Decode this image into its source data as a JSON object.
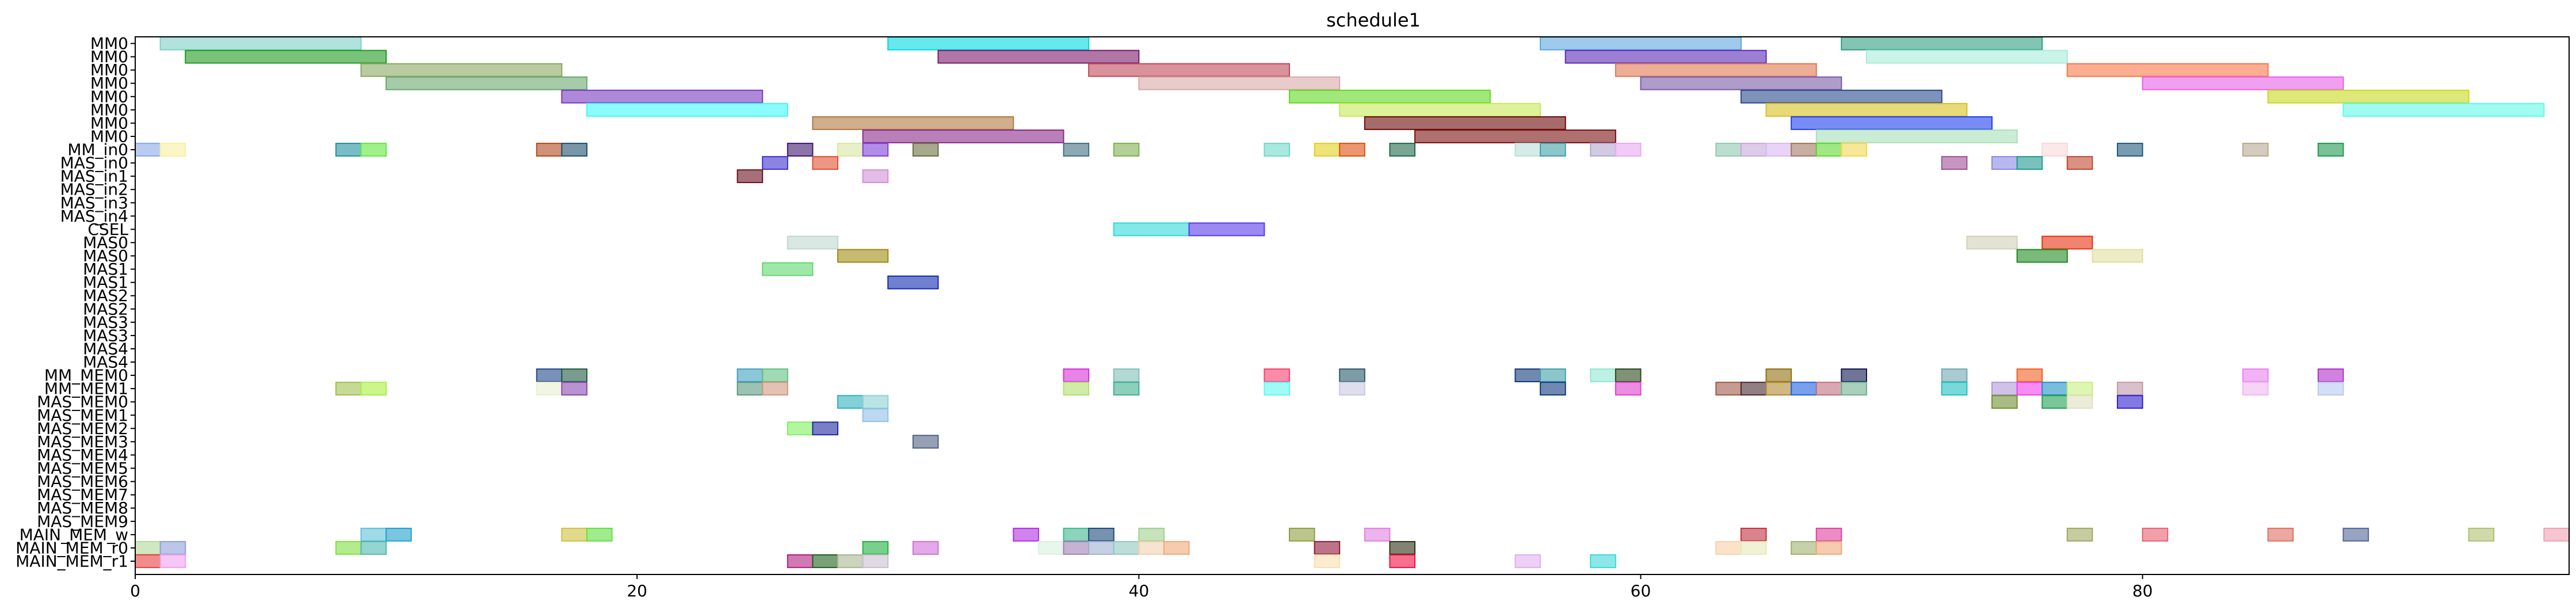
{
  "chart_data": {
    "type": "gantt",
    "title": "schedule1",
    "xlabel": "",
    "ylabel": "",
    "xlim": [
      0,
      97
    ],
    "xticks": [
      0,
      20,
      40,
      60,
      80
    ],
    "grid": false,
    "rows": [
      "MM0",
      "MM0",
      "MM0",
      "MM0",
      "MM0",
      "MM0",
      "MM0",
      "MM0",
      "MM_in0",
      "MAS_in0",
      "MAS_in1",
      "MAS_in2",
      "MAS_in3",
      "MAS_in4",
      "CSEL",
      "MAS0",
      "MAS0",
      "MAS1",
      "MAS1",
      "MAS2",
      "MAS2",
      "MAS3",
      "MAS3",
      "MAS4",
      "MAS4",
      "MM_MEM0",
      "MM_MEM1",
      "MAS_MEM0",
      "MAS_MEM1",
      "MAS_MEM2",
      "MAS_MEM3",
      "MAS_MEM4",
      "MAS_MEM5",
      "MAS_MEM6",
      "MAS_MEM7",
      "MAS_MEM8",
      "MAS_MEM9",
      "MAIN_MEM_w",
      "MAIN_MEM_r0",
      "MAIN_MEM_r1"
    ],
    "tasks": [
      {
        "row": 0,
        "start": 1,
        "end": 9,
        "color": "#7ecfc8"
      },
      {
        "row": 0,
        "start": 30,
        "end": 38,
        "color": "#00d8e0"
      },
      {
        "row": 0,
        "start": 56,
        "end": 64,
        "color": "#5ea6e0"
      },
      {
        "row": 0,
        "start": 68,
        "end": 76,
        "color": "#2e9e80"
      },
      {
        "row": 1,
        "start": 2,
        "end": 10,
        "color": "#1f9a1f"
      },
      {
        "row": 1,
        "start": 32,
        "end": 40,
        "color": "#7a1a6a"
      },
      {
        "row": 1,
        "start": 57,
        "end": 65,
        "color": "#5a2ab8"
      },
      {
        "row": 1,
        "start": 69,
        "end": 77,
        "color": "#a8ecd8"
      },
      {
        "row": 2,
        "start": 9,
        "end": 17,
        "color": "#8aa860"
      },
      {
        "row": 2,
        "start": 38,
        "end": 46,
        "color": "#c04858"
      },
      {
        "row": 2,
        "start": 59,
        "end": 67,
        "color": "#e07850"
      },
      {
        "row": 2,
        "start": 77,
        "end": 85,
        "color": "#f87848"
      },
      {
        "row": 3,
        "start": 10,
        "end": 18,
        "color": "#6aa870"
      },
      {
        "row": 3,
        "start": 40,
        "end": 48,
        "color": "#d8a8a8"
      },
      {
        "row": 3,
        "start": 60,
        "end": 68,
        "color": "#7a5aa8"
      },
      {
        "row": 3,
        "start": 80,
        "end": 88,
        "color": "#e860e8"
      },
      {
        "row": 4,
        "start": 17,
        "end": 25,
        "color": "#7a3ac0"
      },
      {
        "row": 4,
        "start": 46,
        "end": 54,
        "color": "#60d820"
      },
      {
        "row": 4,
        "start": 64,
        "end": 72,
        "color": "#2a4a8a"
      },
      {
        "row": 4,
        "start": 85,
        "end": 93,
        "color": "#c8d820"
      },
      {
        "row": 5,
        "start": 18,
        "end": 26,
        "color": "#40f8f8"
      },
      {
        "row": 5,
        "start": 48,
        "end": 56,
        "color": "#c8e858"
      },
      {
        "row": 5,
        "start": 65,
        "end": 73,
        "color": "#d8c020"
      },
      {
        "row": 5,
        "start": 88,
        "end": 96,
        "color": "#60f8e8"
      },
      {
        "row": 6,
        "start": 27,
        "end": 35,
        "color": "#b07840"
      },
      {
        "row": 6,
        "start": 49,
        "end": 57,
        "color": "#6a0a0a"
      },
      {
        "row": 6,
        "start": 66,
        "end": 74,
        "color": "#2040f0"
      },
      {
        "row": 7,
        "start": 29,
        "end": 37,
        "color": "#8a2a8a"
      },
      {
        "row": 7,
        "start": 51,
        "end": 59,
        "color": "#7a1010"
      },
      {
        "row": 7,
        "start": 67,
        "end": 75,
        "color": "#a8e0b8"
      },
      {
        "row": 8,
        "start": 0,
        "end": 1,
        "color": "#88a8e8"
      },
      {
        "row": 8,
        "start": 1,
        "end": 2,
        "color": "#f8f0a0"
      },
      {
        "row": 8,
        "start": 8,
        "end": 9,
        "color": "#2090a0"
      },
      {
        "row": 8,
        "start": 9,
        "end": 10,
        "color": "#60e840"
      },
      {
        "row": 8,
        "start": 16,
        "end": 17,
        "color": "#b04820"
      },
      {
        "row": 8,
        "start": 17,
        "end": 18,
        "color": "#205070"
      },
      {
        "row": 8,
        "start": 26,
        "end": 27,
        "color": "#401870"
      },
      {
        "row": 8,
        "start": 28,
        "end": 29,
        "color": "#d8e8a0"
      },
      {
        "row": 8,
        "start": 29,
        "end": 30,
        "color": "#8040d8"
      },
      {
        "row": 8,
        "start": 31,
        "end": 32,
        "color": "#6a7040"
      },
      {
        "row": 8,
        "start": 37,
        "end": 38,
        "color": "#407080"
      },
      {
        "row": 8,
        "start": 39,
        "end": 40,
        "color": "#80b050"
      },
      {
        "row": 8,
        "start": 45,
        "end": 46,
        "color": "#70d8c8"
      },
      {
        "row": 8,
        "start": 47,
        "end": 48,
        "color": "#e0d020"
      },
      {
        "row": 8,
        "start": 48,
        "end": 49,
        "color": "#e05010"
      },
      {
        "row": 8,
        "start": 50,
        "end": 51,
        "color": "#206a4a"
      },
      {
        "row": 8,
        "start": 55,
        "end": 56,
        "color": "#b8e0d8"
      },
      {
        "row": 8,
        "start": 56,
        "end": 57,
        "color": "#40a0a8"
      },
      {
        "row": 8,
        "start": 58,
        "end": 59,
        "color": "#b0a8d0"
      },
      {
        "row": 8,
        "start": 59,
        "end": 60,
        "color": "#e8a8f0"
      },
      {
        "row": 8,
        "start": 63,
        "end": 64,
        "color": "#90c8b0"
      },
      {
        "row": 8,
        "start": 64,
        "end": 65,
        "color": "#c8a8d8"
      },
      {
        "row": 8,
        "start": 65,
        "end": 66,
        "color": "#d8b8f0"
      },
      {
        "row": 8,
        "start": 66,
        "end": 67,
        "color": "#a07860"
      },
      {
        "row": 8,
        "start": 67,
        "end": 68,
        "color": "#60d830"
      },
      {
        "row": 8,
        "start": 68,
        "end": 69,
        "color": "#f0d850"
      },
      {
        "row": 8,
        "start": 76,
        "end": 77,
        "color": "#f8d8d8"
      },
      {
        "row": 8,
        "start": 79,
        "end": 80,
        "color": "#205a7a"
      },
      {
        "row": 8,
        "start": 84,
        "end": 85,
        "color": "#b8a890"
      },
      {
        "row": 8,
        "start": 87,
        "end": 88,
        "color": "#209a50"
      },
      {
        "row": 9,
        "start": 25,
        "end": 26,
        "color": "#4030d0"
      },
      {
        "row": 9,
        "start": 27,
        "end": 28,
        "color": "#e05030"
      },
      {
        "row": 9,
        "start": 72,
        "end": 73,
        "color": "#a05098"
      },
      {
        "row": 9,
        "start": 74,
        "end": 75,
        "color": "#8888e8"
      },
      {
        "row": 9,
        "start": 75,
        "end": 76,
        "color": "#209a90"
      },
      {
        "row": 9,
        "start": 77,
        "end": 78,
        "color": "#c04830"
      },
      {
        "row": 10,
        "start": 24,
        "end": 25,
        "color": "#6a1020"
      },
      {
        "row": 10,
        "start": 29,
        "end": 30,
        "color": "#d090d8"
      },
      {
        "row": 14,
        "start": 39,
        "end": 42,
        "color": "#30d8d8"
      },
      {
        "row": 14,
        "start": 42,
        "end": 45,
        "color": "#5a3ae8"
      },
      {
        "row": 15,
        "start": 26,
        "end": 28,
        "color": "#c0d8d0"
      },
      {
        "row": 15,
        "start": 73,
        "end": 75,
        "color": "#d0d0b8"
      },
      {
        "row": 15,
        "start": 76,
        "end": 78,
        "color": "#e83010"
      },
      {
        "row": 16,
        "start": 28,
        "end": 30,
        "color": "#a08a10"
      },
      {
        "row": 16,
        "start": 75,
        "end": 77,
        "color": "#208a20"
      },
      {
        "row": 16,
        "start": 78,
        "end": 80,
        "color": "#e0e0a0"
      },
      {
        "row": 17,
        "start": 25,
        "end": 27,
        "color": "#60d870"
      },
      {
        "row": 18,
        "start": 30,
        "end": 32,
        "color": "#102ab0"
      },
      {
        "row": 25,
        "start": 16,
        "end": 17,
        "color": "#204a8a"
      },
      {
        "row": 25,
        "start": 17,
        "end": 18,
        "color": "#205a40"
      },
      {
        "row": 25,
        "start": 24,
        "end": 25,
        "color": "#40a0c0"
      },
      {
        "row": 25,
        "start": 25,
        "end": 26,
        "color": "#60c080"
      },
      {
        "row": 25,
        "start": 37,
        "end": 38,
        "color": "#d830d8"
      },
      {
        "row": 25,
        "start": 39,
        "end": 40,
        "color": "#80c0b8"
      },
      {
        "row": 25,
        "start": 45,
        "end": 46,
        "color": "#f84070"
      },
      {
        "row": 25,
        "start": 48,
        "end": 49,
        "color": "#2a5a6a"
      },
      {
        "row": 25,
        "start": 55,
        "end": 56,
        "color": "#103a7a"
      },
      {
        "row": 25,
        "start": 56,
        "end": 57,
        "color": "#40a0a8"
      },
      {
        "row": 25,
        "start": 58,
        "end": 59,
        "color": "#90e8d0"
      },
      {
        "row": 25,
        "start": 59,
        "end": 60,
        "color": "#2a4a1a"
      },
      {
        "row": 25,
        "start": 65,
        "end": 66,
        "color": "#907010"
      },
      {
        "row": 25,
        "start": 68,
        "end": 69,
        "color": "#101850"
      },
      {
        "row": 25,
        "start": 72,
        "end": 73,
        "color": "#70a8b0"
      },
      {
        "row": 25,
        "start": 75,
        "end": 76,
        "color": "#f06020"
      },
      {
        "row": 25,
        "start": 84,
        "end": 85,
        "color": "#e880f0"
      },
      {
        "row": 25,
        "start": 87,
        "end": 88,
        "color": "#b030c8"
      },
      {
        "row": 26,
        "start": 8,
        "end": 9,
        "color": "#a0c050"
      },
      {
        "row": 26,
        "start": 9,
        "end": 10,
        "color": "#a8f040"
      },
      {
        "row": 26,
        "start": 16,
        "end": 17,
        "color": "#e8f0d0"
      },
      {
        "row": 26,
        "start": 17,
        "end": 18,
        "color": "#8a4ab0"
      },
      {
        "row": 26,
        "start": 24,
        "end": 25,
        "color": "#5a9a80"
      },
      {
        "row": 26,
        "start": 25,
        "end": 26,
        "color": "#d09880"
      },
      {
        "row": 26,
        "start": 37,
        "end": 38,
        "color": "#b0e070"
      },
      {
        "row": 26,
        "start": 39,
        "end": 40,
        "color": "#40b090"
      },
      {
        "row": 26,
        "start": 45,
        "end": 46,
        "color": "#60f8f0"
      },
      {
        "row": 26,
        "start": 48,
        "end": 49,
        "color": "#c8c8e0"
      },
      {
        "row": 26,
        "start": 56,
        "end": 57,
        "color": "#103a80"
      },
      {
        "row": 26,
        "start": 59,
        "end": 60,
        "color": "#e040d0"
      },
      {
        "row": 26,
        "start": 63,
        "end": 64,
        "color": "#a05848"
      },
      {
        "row": 26,
        "start": 64,
        "end": 65,
        "color": "#4a2a30"
      },
      {
        "row": 26,
        "start": 65,
        "end": 66,
        "color": "#b08830"
      },
      {
        "row": 26,
        "start": 66,
        "end": 67,
        "color": "#2060e0"
      },
      {
        "row": 26,
        "start": 67,
        "end": 68,
        "color": "#c07080"
      },
      {
        "row": 26,
        "start": 68,
        "end": 69,
        "color": "#70b090"
      },
      {
        "row": 26,
        "start": 72,
        "end": 73,
        "color": "#20c0c0"
      },
      {
        "row": 26,
        "start": 74,
        "end": 75,
        "color": "#b098d8"
      },
      {
        "row": 26,
        "start": 75,
        "end": 76,
        "color": "#f040e8"
      },
      {
        "row": 26,
        "start": 76,
        "end": 77,
        "color": "#2090c8"
      },
      {
        "row": 26,
        "start": 77,
        "end": 78,
        "color": "#c8f080"
      },
      {
        "row": 26,
        "start": 79,
        "end": 80,
        "color": "#c098a8"
      },
      {
        "row": 26,
        "start": 84,
        "end": 85,
        "color": "#f0b8f0"
      },
      {
        "row": 26,
        "start": 87,
        "end": 88,
        "color": "#b8c8f0"
      },
      {
        "row": 27,
        "start": 28,
        "end": 29,
        "color": "#30b0c0"
      },
      {
        "row": 27,
        "start": 29,
        "end": 30,
        "color": "#90d0d0"
      },
      {
        "row": 27,
        "start": 74,
        "end": 75,
        "color": "#709030"
      },
      {
        "row": 27,
        "start": 76,
        "end": 77,
        "color": "#20a050"
      },
      {
        "row": 27,
        "start": 77,
        "end": 78,
        "color": "#e0e0c0"
      },
      {
        "row": 27,
        "start": 79,
        "end": 80,
        "color": "#3020d0"
      },
      {
        "row": 28,
        "start": 29,
        "end": 30,
        "color": "#90c0e8"
      },
      {
        "row": 29,
        "start": 26,
        "end": 27,
        "color": "#80f060"
      },
      {
        "row": 29,
        "start": 27,
        "end": 28,
        "color": "#202aa0"
      },
      {
        "row": 30,
        "start": 31,
        "end": 32,
        "color": "#506080"
      },
      {
        "row": 37,
        "start": 9,
        "end": 10,
        "color": "#60c0d8"
      },
      {
        "row": 37,
        "start": 10,
        "end": 11,
        "color": "#20a0d0"
      },
      {
        "row": 37,
        "start": 17,
        "end": 18,
        "color": "#d0c040"
      },
      {
        "row": 37,
        "start": 18,
        "end": 19,
        "color": "#60e040"
      },
      {
        "row": 37,
        "start": 35,
        "end": 36,
        "color": "#b030e0"
      },
      {
        "row": 37,
        "start": 37,
        "end": 38,
        "color": "#40b890"
      },
      {
        "row": 37,
        "start": 38,
        "end": 39,
        "color": "#1a4a7a"
      },
      {
        "row": 37,
        "start": 40,
        "end": 41,
        "color": "#a0d090"
      },
      {
        "row": 37,
        "start": 46,
        "end": 47,
        "color": "#90a040"
      },
      {
        "row": 37,
        "start": 49,
        "end": 50,
        "color": "#e080e0"
      },
      {
        "row": 37,
        "start": 64,
        "end": 65,
        "color": "#c03040"
      },
      {
        "row": 37,
        "start": 67,
        "end": 68,
        "color": "#e040a0"
      },
      {
        "row": 37,
        "start": 77,
        "end": 78,
        "color": "#a0a860"
      },
      {
        "row": 37,
        "start": 80,
        "end": 81,
        "color": "#e86070"
      },
      {
        "row": 37,
        "start": 85,
        "end": 86,
        "color": "#e07060"
      },
      {
        "row": 37,
        "start": 88,
        "end": 89,
        "color": "#506898"
      },
      {
        "row": 37,
        "start": 93,
        "end": 94,
        "color": "#b0c070"
      },
      {
        "row": 37,
        "start": 96,
        "end": 97,
        "color": "#f0a0b0"
      },
      {
        "row": 38,
        "start": 0,
        "end": 1,
        "color": "#b0d898"
      },
      {
        "row": 38,
        "start": 1,
        "end": 2,
        "color": "#90a0d8"
      },
      {
        "row": 38,
        "start": 8,
        "end": 9,
        "color": "#80e040"
      },
      {
        "row": 38,
        "start": 9,
        "end": 10,
        "color": "#50b8b0"
      },
      {
        "row": 38,
        "start": 29,
        "end": 30,
        "color": "#20b040"
      },
      {
        "row": 38,
        "start": 31,
        "end": 32,
        "color": "#d070d8"
      },
      {
        "row": 38,
        "start": 36,
        "end": 37,
        "color": "#d8f0e0"
      },
      {
        "row": 38,
        "start": 37,
        "end": 38,
        "color": "#a080b8"
      },
      {
        "row": 38,
        "start": 38,
        "end": 39,
        "color": "#a0b0d0"
      },
      {
        "row": 38,
        "start": 39,
        "end": 40,
        "color": "#90c8c0"
      },
      {
        "row": 38,
        "start": 40,
        "end": 41,
        "color": "#f0d0b0"
      },
      {
        "row": 38,
        "start": 41,
        "end": 42,
        "color": "#f0a878"
      },
      {
        "row": 38,
        "start": 47,
        "end": 48,
        "color": "#901838"
      },
      {
        "row": 38,
        "start": 50,
        "end": 51,
        "color": "#303018"
      },
      {
        "row": 38,
        "start": 63,
        "end": 64,
        "color": "#f8d0a8"
      },
      {
        "row": 38,
        "start": 64,
        "end": 65,
        "color": "#e8e8b8"
      },
      {
        "row": 38,
        "start": 66,
        "end": 67,
        "color": "#a0b070"
      },
      {
        "row": 38,
        "start": 67,
        "end": 68,
        "color": "#f0a878"
      },
      {
        "row": 39,
        "start": 0,
        "end": 1,
        "color": "#e84040"
      },
      {
        "row": 39,
        "start": 1,
        "end": 2,
        "color": "#f0a0f0"
      },
      {
        "row": 39,
        "start": 26,
        "end": 27,
        "color": "#b02080"
      },
      {
        "row": 39,
        "start": 27,
        "end": 28,
        "color": "#206020"
      },
      {
        "row": 39,
        "start": 28,
        "end": 29,
        "color": "#a8b890"
      },
      {
        "row": 39,
        "start": 29,
        "end": 30,
        "color": "#c8c0d0"
      },
      {
        "row": 39,
        "start": 47,
        "end": 48,
        "color": "#f8e0b0"
      },
      {
        "row": 39,
        "start": 50,
        "end": 51,
        "color": "#f01040"
      },
      {
        "row": 39,
        "start": 55,
        "end": 56,
        "color": "#e0b0f0"
      },
      {
        "row": 39,
        "start": 58,
        "end": 59,
        "color": "#40d8d8"
      }
    ]
  }
}
